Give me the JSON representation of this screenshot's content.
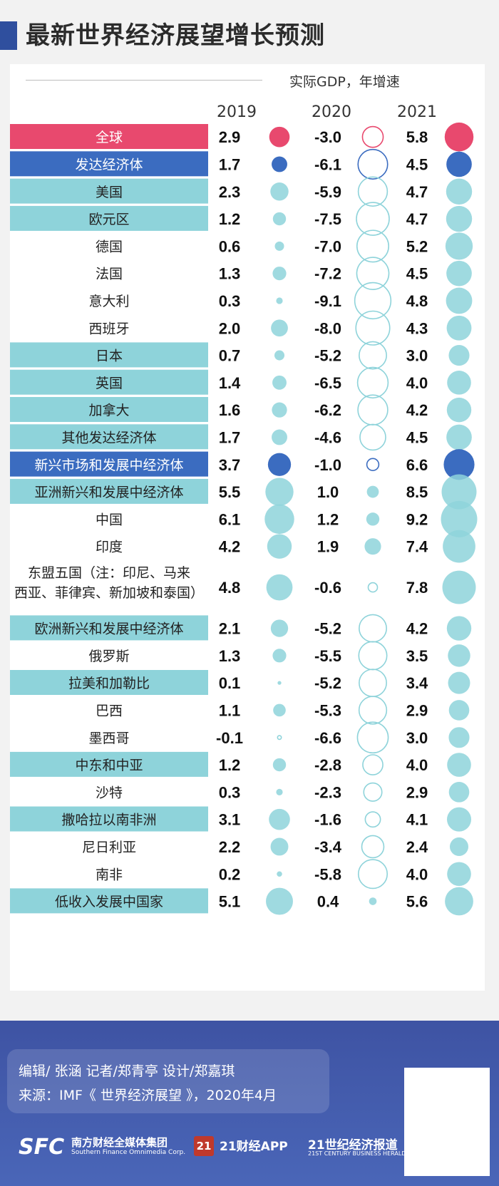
{
  "title": "最新世界经济展望增长预测",
  "chart_data": {
    "type": "bubble-table",
    "unit_label": "实际GDP，年增速",
    "years": [
      "2019",
      "2020",
      "2021"
    ],
    "rows": [
      {
        "label": "全球",
        "style": "pink",
        "values": [
          2.9,
          -3.0,
          5.8
        ]
      },
      {
        "label": "发达经济体",
        "style": "blue",
        "values": [
          1.7,
          -6.1,
          4.5
        ]
      },
      {
        "label": "美国",
        "style": "teal",
        "values": [
          2.3,
          -5.9,
          4.7
        ]
      },
      {
        "label": "欧元区",
        "style": "teal",
        "values": [
          1.2,
          -7.5,
          4.7
        ]
      },
      {
        "label": "德国",
        "style": "none",
        "values": [
          0.6,
          -7.0,
          5.2
        ]
      },
      {
        "label": "法国",
        "style": "none",
        "values": [
          1.3,
          -7.2,
          4.5
        ]
      },
      {
        "label": "意大利",
        "style": "none",
        "values": [
          0.3,
          -9.1,
          4.8
        ]
      },
      {
        "label": "西班牙",
        "style": "none",
        "values": [
          2.0,
          -8.0,
          4.3
        ]
      },
      {
        "label": "日本",
        "style": "teal",
        "values": [
          0.7,
          -5.2,
          3.0
        ]
      },
      {
        "label": "英国",
        "style": "teal",
        "values": [
          1.4,
          -6.5,
          4.0
        ]
      },
      {
        "label": "加拿大",
        "style": "teal",
        "values": [
          1.6,
          -6.2,
          4.2
        ]
      },
      {
        "label": "其他发达经济体",
        "style": "teal",
        "values": [
          1.7,
          -4.6,
          4.5
        ]
      },
      {
        "label": "新兴市场和发展中经济体",
        "style": "blue",
        "values": [
          3.7,
          -1.0,
          6.6
        ]
      },
      {
        "label": "亚洲新兴和发展中经济体",
        "style": "teal",
        "values": [
          5.5,
          1.0,
          8.5
        ]
      },
      {
        "label": "中国",
        "style": "none",
        "values": [
          6.1,
          1.2,
          9.2
        ]
      },
      {
        "label": "印度",
        "style": "none",
        "values": [
          4.2,
          1.9,
          7.4
        ]
      },
      {
        "label": "东盟五国（注：印尼、马来西亚、菲律宾、新加坡和泰国）",
        "lines": [
          "东盟五国（注：印尼、马来",
          "西亚、菲律宾、新加坡和泰国）"
        ],
        "style": "none",
        "values": [
          4.8,
          -0.6,
          7.8
        ]
      },
      {
        "label": "欧洲新兴和发展中经济体",
        "style": "teal",
        "values": [
          2.1,
          -5.2,
          4.2
        ]
      },
      {
        "label": "俄罗斯",
        "style": "none",
        "values": [
          1.3,
          -5.5,
          3.5
        ]
      },
      {
        "label": "拉美和加勒比",
        "style": "teal",
        "values": [
          0.1,
          -5.2,
          3.4
        ]
      },
      {
        "label": "巴西",
        "style": "none",
        "values": [
          1.1,
          -5.3,
          2.9
        ]
      },
      {
        "label": "墨西哥",
        "style": "none",
        "values": [
          -0.1,
          -6.6,
          3.0
        ]
      },
      {
        "label": "中东和中亚",
        "style": "teal",
        "values": [
          1.2,
          -2.8,
          4.0
        ]
      },
      {
        "label": "沙特",
        "style": "none",
        "values": [
          0.3,
          -2.3,
          2.9
        ]
      },
      {
        "label": "撒哈拉以南非洲",
        "style": "teal",
        "values": [
          3.1,
          -1.6,
          4.1
        ]
      },
      {
        "label": "尼日利亚",
        "style": "none",
        "values": [
          2.2,
          -3.4,
          2.4
        ]
      },
      {
        "label": "南非",
        "style": "none",
        "values": [
          0.2,
          -5.8,
          4.0
        ]
      },
      {
        "label": "低收入发展中国家",
        "style": "teal",
        "values": [
          5.1,
          0.4,
          5.6
        ]
      }
    ]
  },
  "colors": {
    "pink": "#e8496e",
    "blue": "#3b6cc0",
    "teal": "#8ed3da",
    "header_bar": "#2f4f9e"
  },
  "footer": {
    "credit_line1": "编辑/ 张涵   记者/郑青亭   设计/郑嘉琪",
    "credit_line2": "来源：IMF《 世界经济展望 》，2020年4月",
    "logo1_mark": "SFC",
    "logo1_cn": "南方财经全媒体集团",
    "logo1_en": "Southern Finance Omnimedia Corp.",
    "logo2_mark": "21",
    "logo2_name": "21财经APP",
    "logo3_cn": "21世纪经济报道",
    "logo3_en": "21ST CENTURY BUSINESS HERALD"
  }
}
